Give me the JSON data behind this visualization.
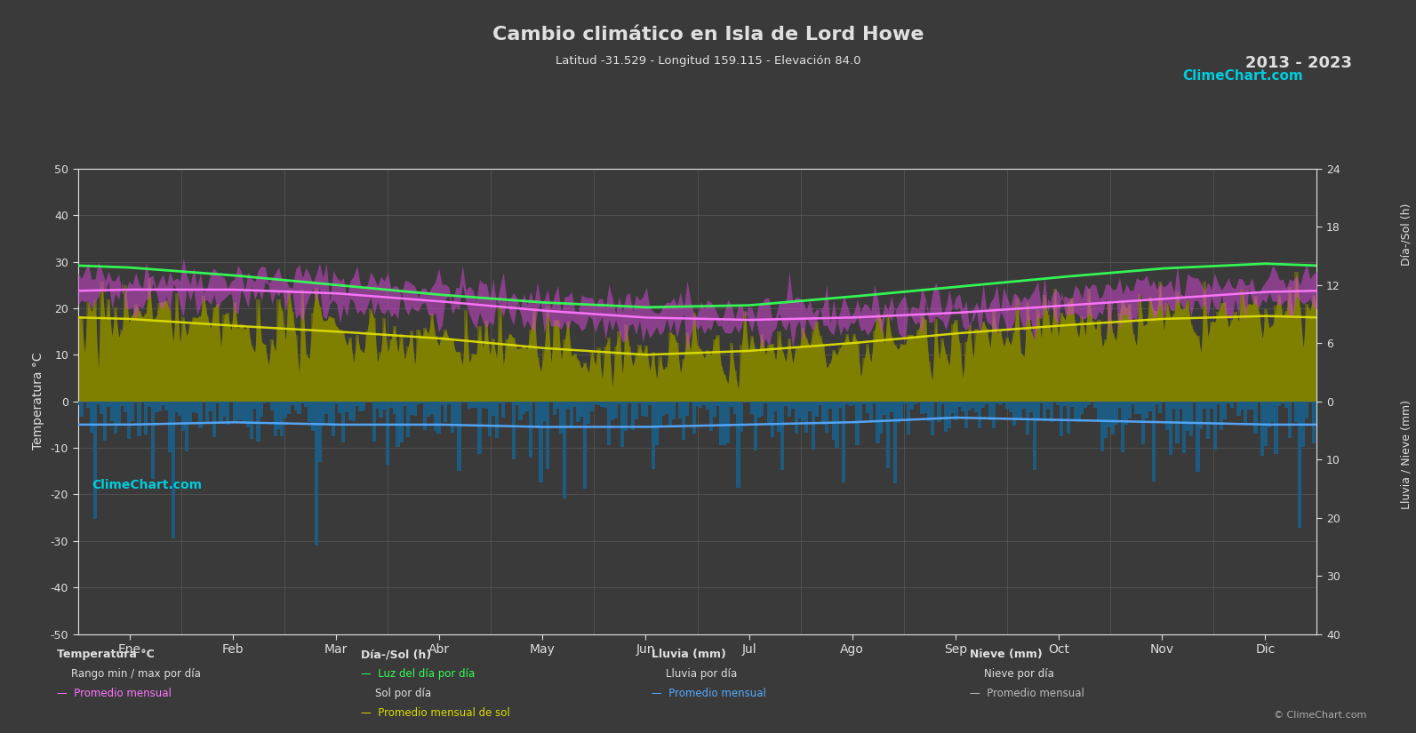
{
  "title": "Cambio climático en Isla de Lord Howe",
  "subtitle": "Latitud -31.529 - Longitud 159.115 - Elevación 84.0",
  "year_range": "2013 - 2023",
  "background_color": "#3a3a3a",
  "text_color": "#e0e0e0",
  "grid_color": "#606060",
  "months": [
    "Ene",
    "Feb",
    "Mar",
    "Abr",
    "May",
    "Jun",
    "Jul",
    "Ago",
    "Sep",
    "Oct",
    "Nov",
    "Dic"
  ],
  "n_days": 365,
  "temp_ylim": [
    -50,
    50
  ],
  "temp_monthly_avg": [
    24.0,
    24.0,
    23.2,
    21.5,
    19.5,
    18.0,
    17.5,
    18.0,
    19.0,
    20.5,
    22.0,
    23.5
  ],
  "temp_monthly_max": [
    27.0,
    27.2,
    26.5,
    24.8,
    22.5,
    20.8,
    20.0,
    20.5,
    21.5,
    23.0,
    24.8,
    26.2
  ],
  "temp_monthly_min": [
    21.5,
    21.8,
    21.0,
    19.5,
    17.5,
    16.0,
    15.5,
    16.0,
    17.0,
    18.5,
    20.0,
    21.2
  ],
  "daylight_monthly": [
    13.8,
    13.0,
    12.0,
    11.0,
    10.2,
    9.7,
    9.9,
    10.8,
    11.8,
    12.8,
    13.7,
    14.2
  ],
  "sunshine_monthly": [
    8.5,
    7.8,
    7.2,
    6.5,
    5.5,
    4.8,
    5.2,
    6.0,
    7.0,
    7.8,
    8.5,
    8.8
  ],
  "rain_monthly_avg_temp": [
    -5.0,
    -4.5,
    -5.0,
    -5.0,
    -5.5,
    -5.5,
    -5.0,
    -4.5,
    -3.5,
    -4.0,
    -4.5,
    -5.0
  ],
  "rain_monthly_mm": [
    130,
    110,
    120,
    115,
    130,
    120,
    110,
    105,
    80,
    95,
    110,
    125
  ],
  "temp_fill_color": "#cc44cc",
  "temp_avg_color": "#ff77ff",
  "daylight_color": "#33ff55",
  "sunshine_fill_color": "#808000",
  "sunshine_line_color": "#dddd00",
  "rain_bar_color": "#1a5f8a",
  "rain_avg_color": "#55aaff",
  "snow_avg_color": "#bbbbbb",
  "sun_scale": 2.083,
  "rain_scale": 1.25,
  "logo_color": "#00ccdd",
  "logo_text": "ClimeChart.com",
  "copyright_text": "© ClimeChart.com"
}
